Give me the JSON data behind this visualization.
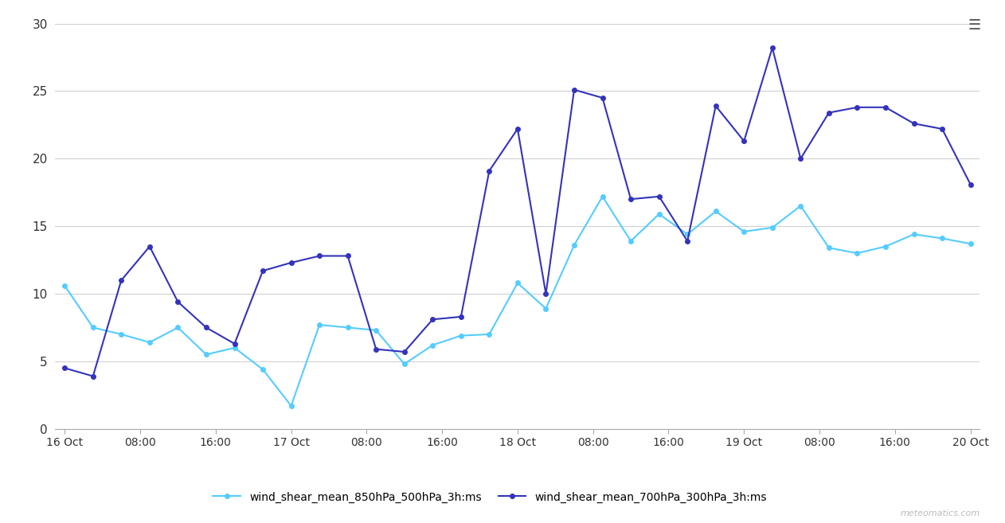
{
  "title": "",
  "xlabel": "",
  "ylabel": "",
  "ylim": [
    0,
    30
  ],
  "yticks": [
    0,
    5,
    10,
    15,
    20,
    25,
    30
  ],
  "background_color": "#ffffff",
  "grid_color": "#d0d0d0",
  "watermark": "meteomatics.com",
  "legend_labels": [
    "wind_shear_mean_850hPa_500hPa_3h:ms",
    "wind_shear_mean_700hPa_300hPa_3h:ms"
  ],
  "line1_color": "#55ccff",
  "line2_color": "#3333bb",
  "marker_size": 4,
  "line_width": 1.5,
  "x_tick_labels": [
    "16 Oct",
    "08:00",
    "16:00",
    "17 Oct",
    "08:00",
    "16:00",
    "18 Oct",
    "08:00",
    "16:00",
    "19 Oct",
    "08:00",
    "16:00",
    "20 Oct"
  ],
  "tick_hours": [
    0,
    8,
    16,
    24,
    32,
    40,
    48,
    56,
    64,
    72,
    80,
    88,
    96
  ],
  "series1_values": [
    10.6,
    7.5,
    7.0,
    6.4,
    7.5,
    5.5,
    6.0,
    4.4,
    1.7,
    7.7,
    7.5,
    7.3,
    4.8,
    6.2,
    6.9,
    7.0,
    10.8,
    8.9,
    13.6,
    17.2,
    13.9,
    15.9,
    14.4,
    16.1,
    14.6,
    14.9,
    16.5,
    13.4,
    13.0,
    13.5,
    14.4,
    14.1,
    13.7
  ],
  "series2_values": [
    4.5,
    3.9,
    11.0,
    13.5,
    9.4,
    7.5,
    6.3,
    11.7,
    12.3,
    12.8,
    12.8,
    5.9,
    5.7,
    8.1,
    8.3,
    19.1,
    22.2,
    10.0,
    25.1,
    24.5,
    17.0,
    17.2,
    13.9,
    23.9,
    21.3,
    28.2,
    20.0,
    23.4,
    23.8,
    23.8,
    22.6,
    22.2,
    18.1
  ]
}
